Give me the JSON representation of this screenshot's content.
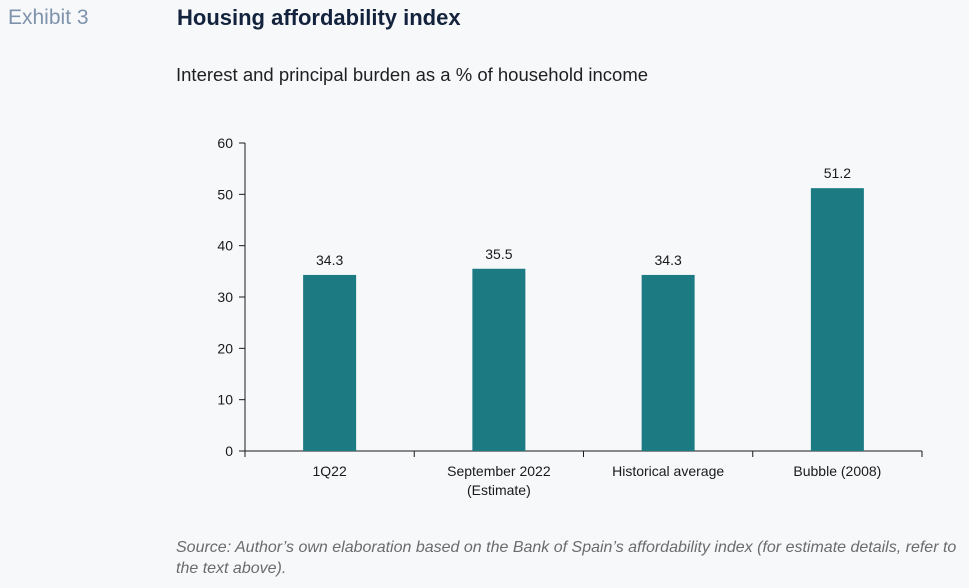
{
  "header": {
    "exhibit": "Exhibit 3",
    "title": "Housing affordability index",
    "subtitle": "Interest and principal burden as a % of household income"
  },
  "footer": {
    "source": "Source: Author’s own elaboration based on the Bank of Spain’s affordability index (for estimate details, refer to the text above)."
  },
  "colors": {
    "bar": "#1b7a82",
    "axis": "#1a1a1a"
  },
  "chart_data": {
    "type": "bar",
    "title": "Housing affordability index",
    "subtitle": "Interest and principal burden as a % of household income",
    "categories": [
      [
        "1Q22"
      ],
      [
        "September 2022",
        "(Estimate)"
      ],
      [
        "Historical average"
      ],
      [
        "Bubble (2008)"
      ]
    ],
    "values": [
      34.3,
      35.5,
      34.3,
      51.2
    ],
    "value_labels": [
      "34.3",
      "35.5",
      "34.3",
      "51.2"
    ],
    "yticks": [
      0,
      10,
      20,
      30,
      40,
      50,
      60
    ],
    "ylim": [
      0,
      60
    ],
    "xlabel": "",
    "ylabel": "",
    "grid": false,
    "legend": "none"
  }
}
